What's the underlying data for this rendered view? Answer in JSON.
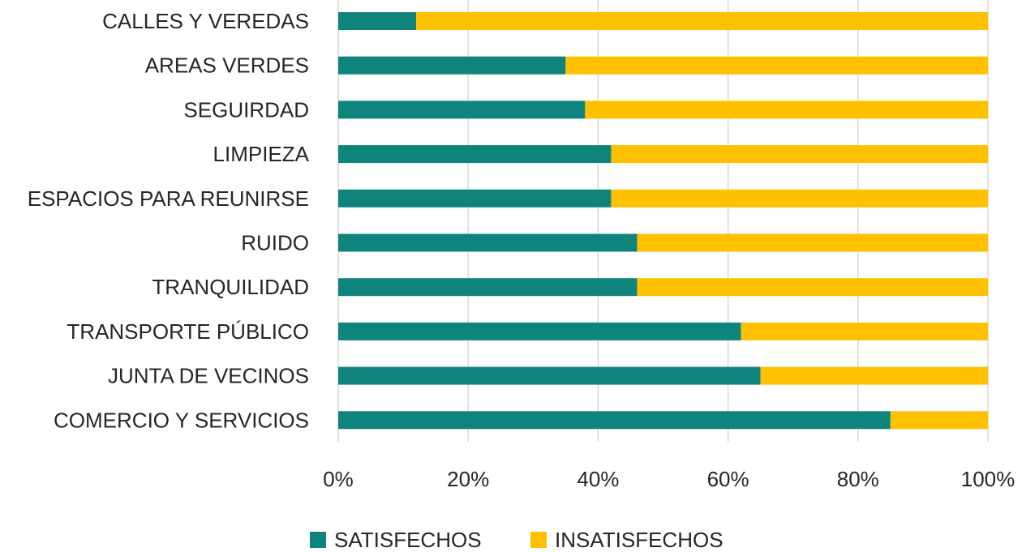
{
  "chart_data": {
    "type": "bar",
    "orientation": "horizontal",
    "stacked": "percent",
    "categories": [
      "CALLES Y VEREDAS",
      "AREAS VERDES",
      "SEGUIRDAD",
      "LIMPIEZA",
      "ESPACIOS PARA REUNIRSE",
      "RUIDO",
      "TRANQUILIDAD",
      "TRANSPORTE PÚBLICO",
      "JUNTA DE VECINOS",
      "COMERCIO Y SERVICIOS"
    ],
    "series": [
      {
        "name": "SATISFECHOS",
        "color": "#0E847D",
        "values": [
          12,
          35,
          38,
          42,
          42,
          46,
          46,
          62,
          65,
          85
        ]
      },
      {
        "name": "INSATISFECHOS",
        "color": "#FFC000",
        "values": [
          88,
          65,
          62,
          58,
          58,
          54,
          54,
          38,
          35,
          15
        ]
      }
    ],
    "x_ticks": [
      "0%",
      "20%",
      "40%",
      "60%",
      "80%",
      "100%"
    ],
    "xlim": [
      0,
      100
    ],
    "grid": true,
    "legend_position": "bottom",
    "title": "",
    "xlabel": "",
    "ylabel": ""
  }
}
